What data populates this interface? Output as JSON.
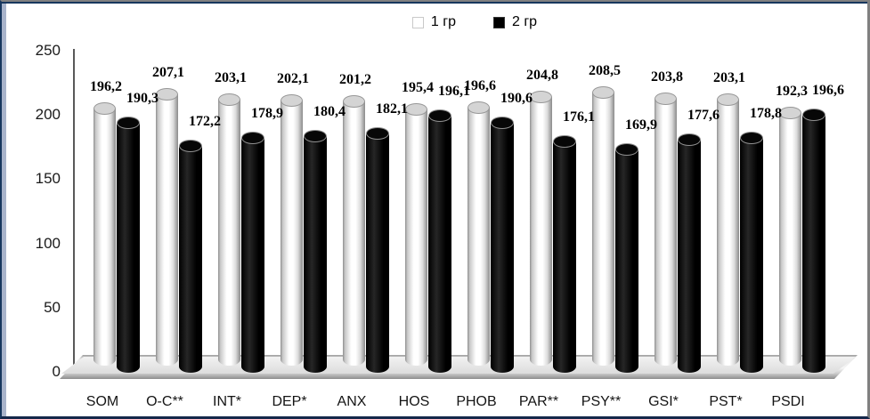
{
  "frame": {
    "background": "#ffffff",
    "border_navy": "#17375E",
    "border_gray": "#808080",
    "left_accent": "#A9B4CB"
  },
  "legend": {
    "items": [
      {
        "label": "1 гр",
        "swatch": "#ffffff"
      },
      {
        "label": "2 гр",
        "swatch": "#000000"
      }
    ]
  },
  "chart_data": {
    "type": "bar",
    "style": "3d-cylinder",
    "title": "",
    "xlabel": "",
    "ylabel": "",
    "categories": [
      "SOM",
      "O-C**",
      "INT*",
      "DEP*",
      "ANX",
      "HOS",
      "PHOB",
      "PAR**",
      "PSY**",
      "GSI*",
      "PST*",
      "PSDI"
    ],
    "series": [
      {
        "name": "1 гр",
        "color": "#ffffff",
        "values": [
          196.2,
          207.1,
          203.1,
          202.1,
          201.2,
          195.4,
          196.6,
          204.8,
          208.5,
          203.8,
          203.1,
          192.3
        ],
        "labels": [
          "196,2",
          "207,1",
          "203,1",
          "202,1",
          "201,2",
          "195,4",
          "196,6",
          "204,8",
          "208,5",
          "203,8",
          "203,1",
          "192,3"
        ]
      },
      {
        "name": "2 гр",
        "color": "#000000",
        "values": [
          190.3,
          172.2,
          178.9,
          180.4,
          182.1,
          196.1,
          190.6,
          176.1,
          169.9,
          177.6,
          178.8,
          196.6
        ],
        "labels": [
          "190,3",
          "172,2",
          "178,9",
          "180,4",
          "182,1",
          "196,1",
          "190,6",
          "176,1",
          "169,9",
          "177,6",
          "178,8",
          "196,6"
        ]
      }
    ],
    "y_ticks": [
      0,
      50,
      100,
      150,
      200,
      250
    ],
    "ylim": [
      0,
      250
    ],
    "grid": false,
    "legend_position": "top",
    "decimal_separator": ","
  }
}
